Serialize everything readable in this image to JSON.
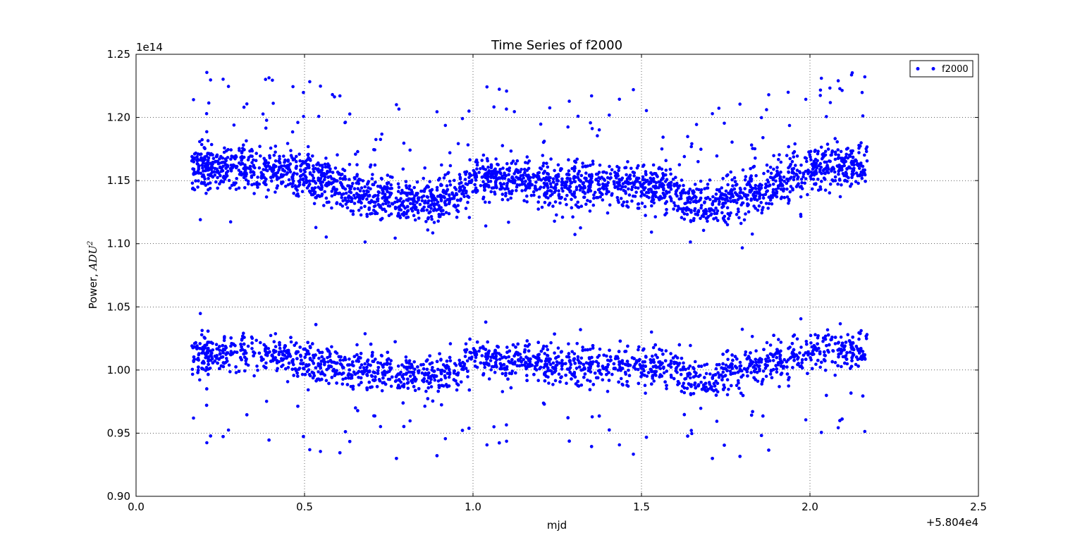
{
  "chart_data": {
    "type": "scatter",
    "title": "Time Series of f2000",
    "xlabel": "mjd",
    "ylabel_text": "Power, ",
    "ylabel_math": "ADU",
    "ylabel_sup": "2",
    "x_offset_text": "+5.804e4",
    "y_scale_text": "1e14",
    "xlim": [
      0.0,
      2.5
    ],
    "ylim": [
      0.9,
      1.25
    ],
    "xticks": [
      0.0,
      0.5,
      1.0,
      1.5,
      2.0,
      2.5
    ],
    "xtick_labels": [
      "0.0",
      "0.5",
      "1.0",
      "1.5",
      "2.0",
      "2.5"
    ],
    "yticks": [
      0.9,
      0.95,
      1.0,
      1.05,
      1.1,
      1.15,
      1.2,
      1.25
    ],
    "ytick_labels": [
      "0.90",
      "0.95",
      "1.00",
      "1.05",
      "1.10",
      "1.15",
      "1.20",
      "1.25"
    ],
    "grid": true,
    "legend_position": "top-right",
    "marker_color": "#0000ff",
    "series": [
      {
        "name": "f2000",
        "band": "upper",
        "x_range": [
          0.165,
          2.17
        ],
        "center_profile": [
          [
            0.165,
            1.161
          ],
          [
            0.3,
            1.16
          ],
          [
            0.45,
            1.158
          ],
          [
            0.55,
            1.151
          ],
          [
            0.65,
            1.14
          ],
          [
            0.75,
            1.136
          ],
          [
            0.88,
            1.133
          ],
          [
            0.95,
            1.14
          ],
          [
            1.0,
            1.15
          ],
          [
            1.1,
            1.152
          ],
          [
            1.2,
            1.148
          ],
          [
            1.35,
            1.148
          ],
          [
            1.5,
            1.147
          ],
          [
            1.6,
            1.14
          ],
          [
            1.68,
            1.128
          ],
          [
            1.75,
            1.135
          ],
          [
            1.85,
            1.14
          ],
          [
            1.95,
            1.155
          ],
          [
            2.05,
            1.162
          ],
          [
            2.17,
            1.163
          ]
        ],
        "approx_min": 1.096,
        "approx_max": 1.239
      },
      {
        "name": "f2000",
        "band": "lower",
        "x_range": [
          0.165,
          2.17
        ],
        "center_profile": [
          [
            0.165,
            1.012
          ],
          [
            0.3,
            1.013
          ],
          [
            0.45,
            1.012
          ],
          [
            0.55,
            1.004
          ],
          [
            0.65,
            1.0
          ],
          [
            0.75,
            0.998
          ],
          [
            0.88,
            0.997
          ],
          [
            0.95,
            1.001
          ],
          [
            1.0,
            1.01
          ],
          [
            1.1,
            1.008
          ],
          [
            1.2,
            1.005
          ],
          [
            1.35,
            1.004
          ],
          [
            1.5,
            1.003
          ],
          [
            1.6,
            1.0
          ],
          [
            1.68,
            0.99
          ],
          [
            1.75,
            0.998
          ],
          [
            1.85,
            1.003
          ],
          [
            1.95,
            1.012
          ],
          [
            2.05,
            1.017
          ],
          [
            2.17,
            1.016
          ]
        ],
        "approx_min": 0.93,
        "approx_max": 1.058
      }
    ]
  }
}
